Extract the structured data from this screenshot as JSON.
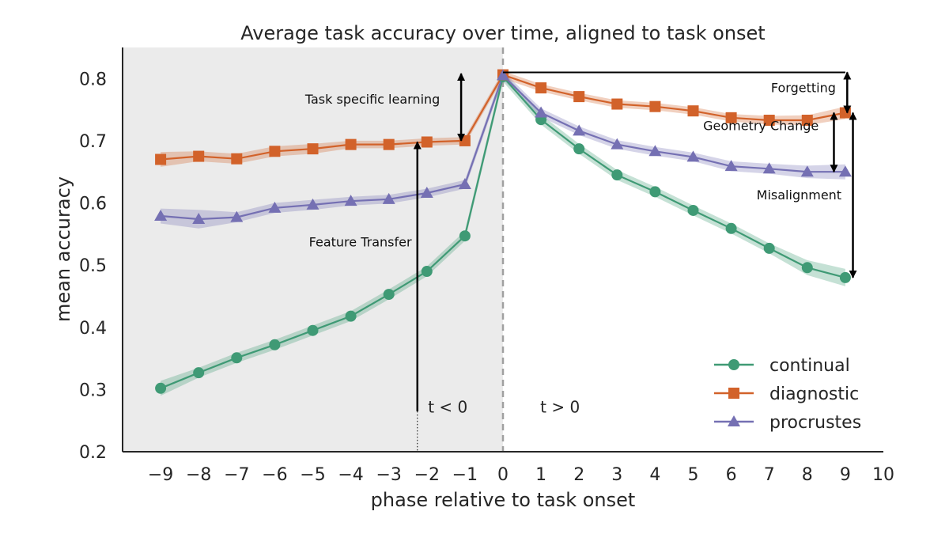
{
  "chart_data": {
    "type": "line",
    "title": "Average task accuracy over time, aligned to task onset",
    "xlabel": "phase relative to task onset",
    "ylabel": "mean accuracy",
    "xlim": [
      -10,
      10
    ],
    "ylim": [
      0.2,
      0.85
    ],
    "x_ticks": [
      -9,
      -8,
      -7,
      -6,
      -5,
      -4,
      -3,
      -2,
      -1,
      0,
      1,
      2,
      3,
      4,
      5,
      6,
      7,
      8,
      9,
      10
    ],
    "x_tick_labels": [
      "−9",
      "−8",
      "−7",
      "−6",
      "−5",
      "−4",
      "−3",
      "−2",
      "−1",
      "0",
      "1",
      "2",
      "3",
      "4",
      "5",
      "6",
      "7",
      "8",
      "9",
      "10"
    ],
    "y_ticks": [
      0.2,
      0.3,
      0.4,
      0.5,
      0.6,
      0.7,
      0.8
    ],
    "y_tick_labels": [
      "0.2",
      "0.3",
      "0.4",
      "0.5",
      "0.6",
      "0.7",
      "0.8"
    ],
    "grid": false,
    "legend_position": "bottom-right",
    "shaded_region": {
      "x_range": [
        -10,
        0
      ],
      "color": "#ebebeb"
    },
    "vline": {
      "x": 0,
      "color": "#a0a0a0",
      "style": "dashed"
    },
    "x": [
      -9,
      -8,
      -7,
      -6,
      -5,
      -4,
      -3,
      -2,
      -1,
      0,
      1,
      2,
      3,
      4,
      5,
      6,
      7,
      8,
      9
    ],
    "series": [
      {
        "name": "continual",
        "color": "#3f9a75",
        "marker": "circle",
        "values": [
          0.302,
          0.327,
          0.351,
          0.372,
          0.395,
          0.418,
          0.453,
          0.49,
          0.547,
          0.803,
          0.734,
          0.687,
          0.645,
          0.618,
          0.588,
          0.559,
          0.527,
          0.496,
          0.48
        ],
        "band": [
          0.012,
          0.008,
          0.008,
          0.008,
          0.008,
          0.008,
          0.008,
          0.008,
          0.008,
          0.008,
          0.008,
          0.008,
          0.008,
          0.008,
          0.008,
          0.008,
          0.008,
          0.012,
          0.014
        ]
      },
      {
        "name": "diagnostic",
        "color": "#d2622a",
        "marker": "square",
        "values": [
          0.67,
          0.675,
          0.671,
          0.683,
          0.687,
          0.694,
          0.694,
          0.698,
          0.7,
          0.806,
          0.785,
          0.771,
          0.759,
          0.755,
          0.748,
          0.737,
          0.733,
          0.733,
          0.745
        ],
        "band": [
          0.012,
          0.008,
          0.008,
          0.008,
          0.008,
          0.006,
          0.006,
          0.006,
          0.006,
          0.006,
          0.006,
          0.006,
          0.006,
          0.006,
          0.006,
          0.006,
          0.007,
          0.008,
          0.01
        ]
      },
      {
        "name": "procrustes",
        "color": "#7570b3",
        "marker": "triangle",
        "values": [
          0.579,
          0.574,
          0.577,
          0.592,
          0.597,
          0.603,
          0.606,
          0.616,
          0.63,
          0.805,
          0.745,
          0.716,
          0.694,
          0.683,
          0.674,
          0.659,
          0.655,
          0.65,
          0.65
        ],
        "band": [
          0.012,
          0.015,
          0.008,
          0.008,
          0.008,
          0.007,
          0.007,
          0.007,
          0.007,
          0.007,
          0.007,
          0.007,
          0.007,
          0.007,
          0.007,
          0.008,
          0.008,
          0.01,
          0.012
        ]
      }
    ],
    "annotations": [
      {
        "text": "Task specific learning",
        "type": "double-arrow",
        "x": -1.1,
        "y_from": 0.7,
        "y_to": 0.808
      },
      {
        "text": "Feature Transfer",
        "type": "arrow",
        "x": -2.25,
        "y_from": 0.265,
        "y_to": 0.698
      },
      {
        "text": "Forgetting",
        "type": "double-arrow",
        "x": 9.05,
        "y_from": 0.745,
        "y_to": 0.81
      },
      {
        "text": "Geometry Change",
        "type": "double-arrow",
        "x": 8.7,
        "y_from": 0.65,
        "y_to": 0.745
      },
      {
        "text": "Misalignment",
        "type": "double-arrow",
        "x": 9.2,
        "y_from": 0.48,
        "y_to": 0.745
      }
    ],
    "reference_line": {
      "y": 0.81,
      "x_from": 0,
      "x_to": 9
    },
    "region_labels": [
      {
        "text": "t < 0",
        "x": -1.45,
        "y": 0.263
      },
      {
        "text": "t > 0",
        "x": 1.5,
        "y": 0.263
      }
    ]
  }
}
